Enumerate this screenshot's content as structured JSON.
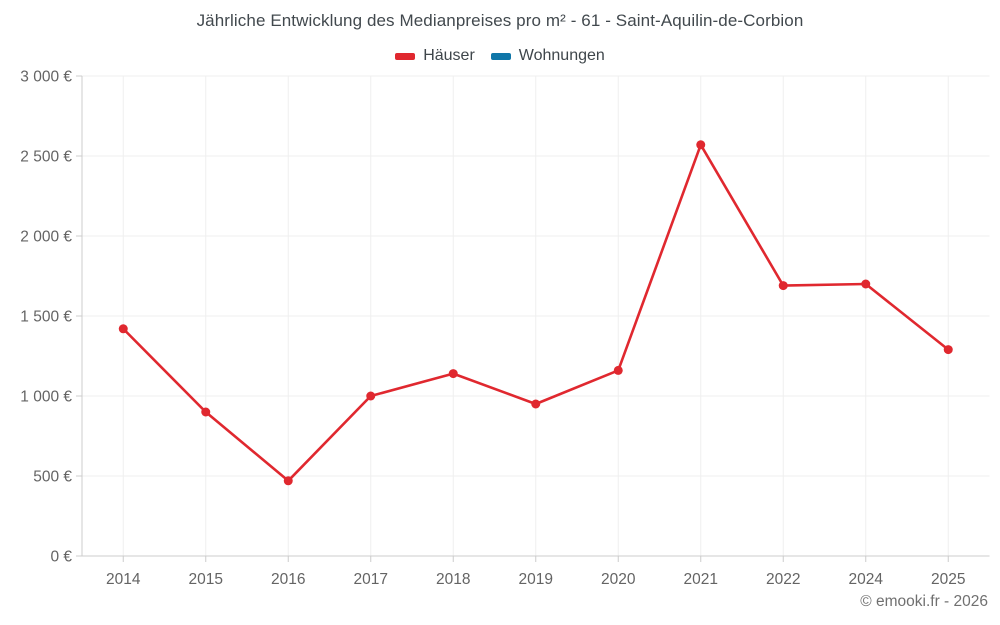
{
  "header": {
    "title": "Jährliche Entwicklung des Medianpreises pro m² - 61 - Saint-Aquilin-de-Corbion"
  },
  "legend": {
    "items": [
      {
        "key": "haeuser",
        "label": "Häuser",
        "color": "#e0282f"
      },
      {
        "key": "wohnungen",
        "label": "Wohnungen",
        "color": "#0f76a8"
      }
    ]
  },
  "footer": {
    "text": "© emooki.fr - 2026"
  },
  "colors": {
    "accent_red": "#e0282f",
    "accent_blue": "#0f76a8",
    "grid": "#efefef",
    "axis": "#cccccc",
    "title_text": "#42494e",
    "tick_text": "#646464",
    "footer_text": "#707070"
  },
  "chart_data": {
    "type": "line",
    "title": "Jährliche Entwicklung des Medianpreises pro m² - 61 - Saint-Aquilin-de-Corbion",
    "xlabel": "",
    "ylabel": "",
    "categories": [
      "2014",
      "2015",
      "2016",
      "2017",
      "2018",
      "2019",
      "2020",
      "2021",
      "2022",
      "2024",
      "2025"
    ],
    "series": [
      {
        "name": "Häuser",
        "color": "#e0282f",
        "values": [
          1420,
          900,
          470,
          1000,
          1140,
          950,
          1160,
          2570,
          1690,
          1700,
          1290
        ]
      },
      {
        "name": "Wohnungen",
        "color": "#0f76a8",
        "values": []
      }
    ],
    "ylim": [
      0,
      3000
    ],
    "ytick_step": 500,
    "ytick_labels": [
      "0 €",
      "500 €",
      "1 000 €",
      "1 500 €",
      "2 000 €",
      "2 500 €",
      "3 000 €"
    ],
    "currency": "€",
    "grid": true,
    "legend_position": "top",
    "note": "Year 2023 absent from x-axis; Wohnungen series has no plotted points"
  }
}
